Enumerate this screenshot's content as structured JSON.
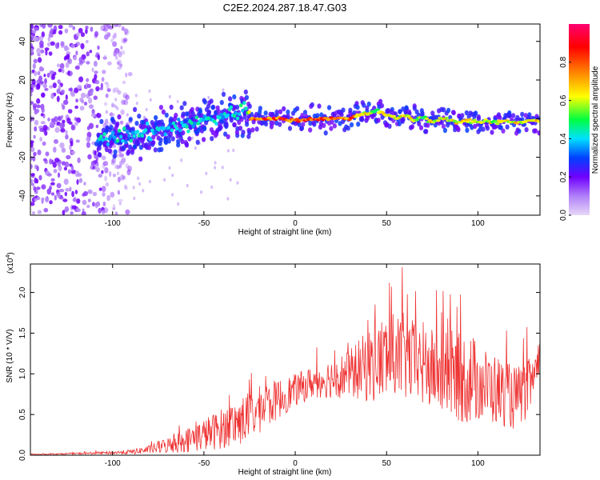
{
  "title": "C2E2.2024.287.18.47.G03",
  "chart_data": [
    {
      "type": "heatmap",
      "title": "C2E2.2024.287.18.47.G03",
      "xlabel": "Height of straight line (km)",
      "ylabel": "Frequency (Hz)",
      "xlim": [
        -145,
        134
      ],
      "ylim": [
        -50,
        49
      ],
      "xticks": [
        -100,
        -50,
        0,
        50,
        100
      ],
      "yticks": [
        -40,
        -20,
        0,
        20,
        40
      ],
      "colorbar": {
        "label": "Normalized spectral amplitude",
        "range": [
          0,
          1
        ],
        "ticks": [
          0.0,
          0.2,
          0.4,
          0.6,
          0.8
        ],
        "colormap": [
          "#e8d8f8",
          "#7000ff",
          "#0040ff",
          "#00e0ff",
          "#00ff40",
          "#ffff00",
          "#ff8000",
          "#ff0000",
          "#ff0070"
        ]
      },
      "ridge": {
        "x": [
          -108,
          -100,
          -90,
          -80,
          -70,
          -60,
          -50,
          -40,
          -35,
          -30,
          -27,
          -25,
          -20,
          -10,
          0,
          10,
          20,
          30,
          35,
          40,
          45,
          50,
          55,
          60,
          65,
          70,
          75,
          80,
          85,
          90,
          95,
          100,
          105,
          110,
          115,
          120,
          125,
          130,
          134
        ],
        "freq": [
          -12,
          -10,
          -9,
          -7,
          -5,
          -3,
          -1,
          1,
          3,
          4,
          5,
          0,
          0,
          0,
          -1,
          0,
          0,
          0,
          2,
          3,
          4,
          2,
          0,
          2,
          -1,
          1,
          -2,
          0,
          -1,
          -2,
          -1,
          -2,
          -1,
          -2,
          -1,
          -2,
          -2,
          -1,
          -1
        ],
        "amplitude": [
          0.45,
          0.45,
          0.45,
          0.45,
          0.4,
          0.45,
          0.45,
          0.45,
          0.45,
          0.5,
          0.5,
          0.88,
          0.88,
          0.88,
          0.88,
          0.88,
          0.88,
          0.88,
          0.75,
          0.7,
          0.6,
          0.7,
          0.65,
          0.7,
          0.7,
          0.6,
          0.7,
          0.7,
          0.65,
          0.7,
          0.7,
          0.7,
          0.7,
          0.65,
          0.7,
          0.7,
          0.7,
          0.7,
          0.7
        ]
      },
      "noise_region": {
        "x": [
          -145,
          -100
        ],
        "freq": [
          -50,
          49
        ],
        "amplitude": 0.15
      }
    },
    {
      "type": "line",
      "xlabel": "Height of straight line (km)",
      "ylabel": "SNR (10 * V/V)",
      "scale_label": "(x10",
      "scale_exp": "4",
      "scale_close": ")",
      "xlim": [
        -145,
        134
      ],
      "ylim": [
        0,
        2.35
      ],
      "xticks": [
        -100,
        -50,
        0,
        50,
        100
      ],
      "yticks": [
        0.0,
        0.5,
        1.0,
        1.5,
        2.0
      ],
      "ytick_labels": [
        "0.0",
        "0.5",
        "1.0",
        "1.5",
        "2.0"
      ],
      "color": "#ee3333",
      "series": [
        {
          "name": "SNR",
          "x": [
            -145,
            -120,
            -100,
            -90,
            -80,
            -70,
            -60,
            -50,
            -40,
            -30,
            -20,
            -10,
            0,
            10,
            20,
            30,
            40,
            45,
            50,
            55,
            60,
            65,
            70,
            75,
            80,
            85,
            90,
            95,
            100,
            105,
            110,
            115,
            120,
            125,
            130,
            134
          ],
          "mean": [
            0.01,
            0.02,
            0.03,
            0.04,
            0.07,
            0.12,
            0.18,
            0.25,
            0.33,
            0.42,
            0.55,
            0.68,
            0.8,
            0.9,
            0.95,
            1.0,
            1.1,
            1.15,
            1.2,
            1.2,
            1.2,
            1.15,
            1.1,
            1.05,
            1.0,
            1.0,
            0.95,
            0.95,
            0.9,
            0.85,
            0.8,
            0.75,
            0.7,
            0.75,
            0.9,
            1.1
          ],
          "spread": [
            0.005,
            0.01,
            0.02,
            0.03,
            0.05,
            0.1,
            0.15,
            0.2,
            0.25,
            0.3,
            0.3,
            0.25,
            0.2,
            0.2,
            0.25,
            0.3,
            0.45,
            0.5,
            0.55,
            0.55,
            0.55,
            0.5,
            0.55,
            0.5,
            0.5,
            0.55,
            0.55,
            0.6,
            0.5,
            0.45,
            0.45,
            0.4,
            0.4,
            0.35,
            0.35,
            0.3
          ]
        }
      ]
    }
  ]
}
